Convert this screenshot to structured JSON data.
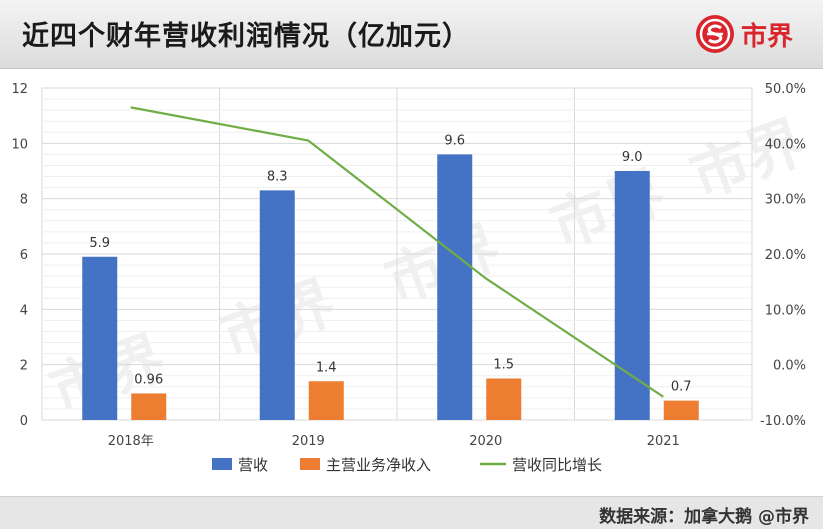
{
  "header": {
    "title": "近四个财年营收利润情况（亿加元）",
    "brand_name": "市界",
    "brand_color": "#d8262c"
  },
  "footer": {
    "source": "数据来源：加拿大鹅  @市界"
  },
  "chart_data": {
    "type": "bar",
    "categories": [
      "2018年",
      "2019",
      "2020",
      "2021"
    ],
    "series": [
      {
        "name": "营收",
        "kind": "bar",
        "axis": "left",
        "color": "#4472c4",
        "values": [
          5.9,
          8.3,
          9.6,
          9.0
        ],
        "labels": [
          "5.9",
          "8.3",
          "9.6",
          "9.0"
        ]
      },
      {
        "name": "主营业务净收入",
        "kind": "bar",
        "axis": "left",
        "color": "#ed7d31",
        "values": [
          0.96,
          1.4,
          1.5,
          0.7
        ],
        "labels": [
          "0.96",
          "1.4",
          "1.5",
          "0.7"
        ]
      },
      {
        "name": "营收同比增长",
        "kind": "line",
        "axis": "right",
        "color": "#70ad47",
        "values": [
          46.5,
          40.5,
          15.6,
          -5.8
        ]
      }
    ],
    "y_left": {
      "min": 0,
      "max": 12,
      "ticks": [
        "0",
        "2",
        "4",
        "6",
        "8",
        "10",
        "12"
      ]
    },
    "y_right": {
      "min": -10,
      "max": 50,
      "ticks": [
        "-10.0%",
        "0.0%",
        "10.0%",
        "20.0%",
        "30.0%",
        "40.0%",
        "50.0%"
      ]
    },
    "grid": true,
    "legend": "bottom",
    "watermark": "市界"
  }
}
